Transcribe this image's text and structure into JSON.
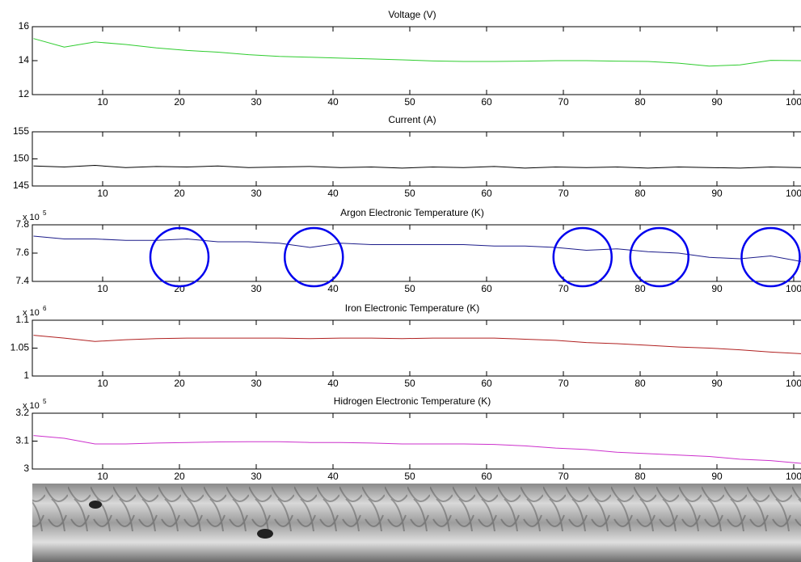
{
  "chart_data": [
    {
      "type": "line",
      "title": "Voltage (V)",
      "x": [
        1,
        5,
        9,
        13,
        17,
        21,
        25,
        29,
        33,
        37,
        41,
        45,
        49,
        53,
        57,
        61,
        65,
        69,
        73,
        77,
        81,
        85,
        89,
        93,
        97,
        101
      ],
      "series": [
        {
          "color": "#2ecc2e",
          "values": [
            15.3,
            14.8,
            15.1,
            14.95,
            14.75,
            14.6,
            14.5,
            14.35,
            14.25,
            14.2,
            14.15,
            14.1,
            14.05,
            13.98,
            13.95,
            13.95,
            13.97,
            14.0,
            14.0,
            13.97,
            13.95,
            13.85,
            13.68,
            13.75,
            14.02,
            14.0
          ]
        }
      ],
      "xlim": [
        1,
        101
      ],
      "xticks": [
        10,
        20,
        30,
        40,
        50,
        60,
        70,
        80,
        90,
        100
      ],
      "ylim": [
        12,
        16
      ],
      "yticks": [
        12,
        14,
        16
      ]
    },
    {
      "type": "line",
      "title": "Current (A)",
      "x": [
        1,
        5,
        9,
        13,
        17,
        21,
        25,
        29,
        33,
        37,
        41,
        45,
        49,
        53,
        57,
        61,
        65,
        69,
        73,
        77,
        81,
        85,
        89,
        93,
        97,
        101
      ],
      "series": [
        {
          "color": "#000000",
          "values": [
            148.7,
            148.5,
            148.8,
            148.4,
            148.6,
            148.5,
            148.7,
            148.4,
            148.5,
            148.6,
            148.4,
            148.5,
            148.3,
            148.5,
            148.4,
            148.6,
            148.3,
            148.5,
            148.4,
            148.5,
            148.3,
            148.5,
            148.4,
            148.3,
            148.5,
            148.4
          ]
        }
      ],
      "xlim": [
        1,
        101
      ],
      "xticks": [
        10,
        20,
        30,
        40,
        50,
        60,
        70,
        80,
        90,
        100
      ],
      "ylim": [
        145,
        155
      ],
      "yticks": [
        145,
        150,
        155
      ]
    },
    {
      "type": "line",
      "title": "Argon Electronic Temperature (K)",
      "multiplier": {
        "base": "x 10",
        "power": "5"
      },
      "x": [
        1,
        5,
        9,
        13,
        17,
        21,
        25,
        29,
        33,
        37,
        41,
        45,
        49,
        53,
        57,
        61,
        65,
        69,
        73,
        77,
        81,
        85,
        89,
        93,
        97,
        101
      ],
      "series": [
        {
          "color": "#1c1c8a",
          "values": [
            7.72,
            7.7,
            7.7,
            7.69,
            7.69,
            7.7,
            7.68,
            7.68,
            7.67,
            7.64,
            7.67,
            7.66,
            7.66,
            7.66,
            7.66,
            7.65,
            7.65,
            7.64,
            7.62,
            7.63,
            7.61,
            7.6,
            7.57,
            7.56,
            7.58,
            7.54
          ]
        }
      ],
      "highlights": [
        20,
        37.5,
        72.5,
        82.5,
        97
      ],
      "xlim": [
        1,
        101
      ],
      "xticks": [
        10,
        20,
        30,
        40,
        50,
        60,
        70,
        80,
        90,
        100
      ],
      "ylim": [
        7.4,
        7.8
      ],
      "yticks": [
        7.4,
        7.6,
        7.8
      ]
    },
    {
      "type": "line",
      "title": "Iron Electronic Temperature (K)",
      "multiplier": {
        "base": "x 10",
        "power": "6"
      },
      "x": [
        1,
        5,
        9,
        13,
        17,
        21,
        25,
        29,
        33,
        37,
        41,
        45,
        49,
        53,
        57,
        61,
        65,
        69,
        73,
        77,
        81,
        85,
        89,
        93,
        97,
        101
      ],
      "series": [
        {
          "color": "#b02020",
          "values": [
            1.073,
            1.068,
            1.062,
            1.065,
            1.067,
            1.068,
            1.068,
            1.068,
            1.068,
            1.067,
            1.068,
            1.068,
            1.067,
            1.068,
            1.068,
            1.068,
            1.066,
            1.064,
            1.06,
            1.058,
            1.055,
            1.052,
            1.05,
            1.047,
            1.043,
            1.04
          ]
        }
      ],
      "xlim": [
        1,
        101
      ],
      "xticks": [
        10,
        20,
        30,
        40,
        50,
        60,
        70,
        80,
        90,
        100
      ],
      "ylim": [
        1,
        1.1
      ],
      "yticks": [
        1,
        1.05,
        1.1
      ]
    },
    {
      "type": "line",
      "title": "Hidrogen Electronic Temperature (K)",
      "multiplier": {
        "base": "x 10",
        "power": "5"
      },
      "x": [
        1,
        5,
        9,
        13,
        17,
        21,
        25,
        29,
        33,
        37,
        41,
        45,
        49,
        53,
        57,
        61,
        65,
        69,
        73,
        77,
        81,
        85,
        89,
        93,
        97,
        101
      ],
      "series": [
        {
          "color": "#cc30cc",
          "values": [
            3.12,
            3.11,
            3.09,
            3.09,
            3.093,
            3.095,
            3.097,
            3.098,
            3.098,
            3.095,
            3.095,
            3.093,
            3.09,
            3.09,
            3.09,
            3.088,
            3.083,
            3.075,
            3.07,
            3.06,
            3.055,
            3.05,
            3.045,
            3.035,
            3.03,
            3.02
          ]
        }
      ],
      "xlim": [
        1,
        101
      ],
      "xticks": [
        10,
        20,
        30,
        40,
        50,
        60,
        70,
        80,
        90,
        100
      ],
      "ylim": [
        3,
        3.2
      ],
      "yticks": [
        3,
        3.1,
        3.2
      ]
    }
  ]
}
